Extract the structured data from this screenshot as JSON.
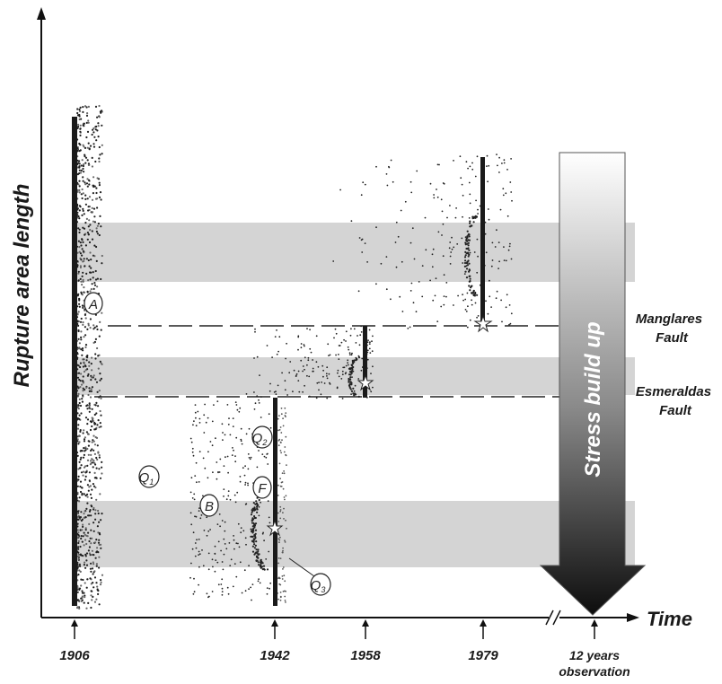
{
  "y_axis_label": "Rupture area length",
  "x_axis_label": "Time",
  "years": [
    {
      "label": "1906"
    },
    {
      "label": "1942"
    },
    {
      "label": "1958"
    },
    {
      "label": "1979"
    }
  ],
  "observation": {
    "line1": "12 years",
    "line2": "observation"
  },
  "faults": [
    {
      "line1": "Manglares",
      "line2": "Fault"
    },
    {
      "line1": "Esmeraldas",
      "line2": "Fault"
    }
  ],
  "stress_label": "Stress build up",
  "circle_labels": {
    "A": "A",
    "B": "B",
    "F": "F",
    "Q1": {
      "base": "Q",
      "sub": "1"
    },
    "Q2": {
      "base": "Q",
      "sub": "2"
    },
    "Q3": {
      "base": "Q",
      "sub": "3"
    }
  },
  "colors": {
    "band": "#d4d4d4",
    "rupture": "#1a1a1a",
    "arrow_top": "#ffffff",
    "arrow_bottom": "#111111"
  }
}
